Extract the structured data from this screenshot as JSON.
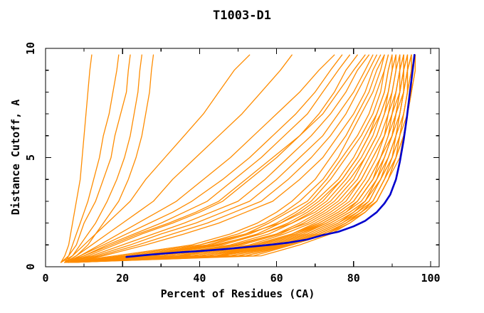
{
  "page": {
    "background": "#ffffff"
  },
  "chart_data": {
    "type": "line",
    "title": "T1003-D1",
    "xlabel": "Percent of Residues (CA)",
    "ylabel": "Distance Cutoff, A",
    "xlim": [
      0,
      100
    ],
    "ylim": [
      0,
      10
    ],
    "x_major_ticks": [
      0,
      20,
      40,
      60,
      80,
      100
    ],
    "x_minor_ticks": [
      10,
      30,
      50,
      70,
      90
    ],
    "y_major_ticks": [
      0,
      5,
      10
    ],
    "y_minor_ticks": [
      1,
      2,
      3,
      4,
      6,
      7,
      8,
      9
    ],
    "grid": false,
    "legend": "none",
    "colors": {
      "model_line": "#ff8c00",
      "highlight_line": "#0000cd",
      "frame": "#000000",
      "text": "#000000",
      "background": "#ffffff"
    },
    "y_grid": [
      0.2,
      0.5,
      1,
      1.5,
      2,
      2.5,
      3,
      4,
      5,
      6,
      7,
      8,
      9,
      9.7
    ],
    "models": [
      [
        4,
        5,
        6,
        6.5,
        7,
        7.5,
        8,
        9,
        9.5,
        10,
        10.5,
        11,
        11.5,
        12
      ],
      [
        4,
        6,
        7,
        8,
        9,
        10,
        11,
        12.5,
        14,
        15,
        16.5,
        17.5,
        18.5,
        19
      ],
      [
        5,
        6,
        8,
        9,
        10,
        11.5,
        13,
        15,
        17,
        18,
        19.5,
        21,
        21.5,
        22
      ],
      [
        4,
        7,
        9,
        11,
        13,
        14.5,
        16,
        18.5,
        20.5,
        22,
        23,
        24,
        24.5,
        25
      ],
      [
        5,
        8,
        11,
        13,
        15,
        17,
        19,
        21.5,
        23.5,
        25,
        26,
        27,
        27.5,
        28
      ],
      [
        5,
        7,
        10,
        13,
        16,
        19,
        22,
        26,
        31,
        36,
        41,
        45,
        49,
        53
      ],
      [
        5,
        8,
        12,
        16,
        20,
        24,
        28,
        33,
        39,
        45,
        51,
        56,
        61,
        64
      ],
      [
        6,
        9,
        14,
        19,
        24,
        29,
        34,
        41,
        48,
        54,
        60,
        66,
        71,
        75
      ],
      [
        5,
        9,
        15,
        21,
        27,
        33,
        38,
        46,
        53,
        59,
        65,
        70,
        74,
        77
      ],
      [
        6,
        10,
        16,
        23,
        30,
        36,
        42,
        49,
        56,
        62,
        68,
        72,
        76,
        79
      ],
      [
        6,
        11,
        18,
        25,
        33,
        40,
        46,
        53,
        60,
        66,
        71,
        75,
        78,
        81
      ],
      [
        5,
        10,
        17,
        24,
        32,
        39,
        45,
        52,
        59,
        66,
        72,
        76,
        80,
        83
      ],
      [
        6,
        12,
        20,
        28,
        36,
        43,
        50,
        57,
        63,
        69,
        74,
        78,
        81,
        84
      ],
      [
        6,
        13,
        22,
        30,
        39,
        46,
        53,
        60,
        66,
        72,
        76,
        80,
        83,
        85
      ],
      [
        7,
        14,
        24,
        33,
        42,
        49,
        56,
        63,
        69,
        74,
        78,
        81,
        84,
        86
      ],
      [
        7,
        15,
        26,
        36,
        45,
        52,
        59,
        66,
        72,
        76,
        80,
        83,
        85,
        87
      ],
      [
        5,
        18,
        38,
        48,
        55,
        60,
        64,
        70,
        74,
        78,
        81,
        84,
        86,
        88
      ],
      [
        6,
        20,
        40,
        50,
        57,
        62,
        66,
        72,
        76,
        79,
        82,
        85,
        87,
        88
      ],
      [
        5,
        22,
        42,
        52,
        58,
        63,
        68,
        73,
        77,
        81,
        84,
        86,
        88,
        89
      ],
      [
        7,
        24,
        43,
        53,
        60,
        65,
        69,
        74,
        78,
        82,
        85,
        87,
        88,
        89
      ],
      [
        6,
        26,
        45,
        55,
        61,
        66,
        70,
        76,
        80,
        83,
        86,
        88,
        89,
        90
      ],
      [
        5,
        28,
        46,
        56,
        63,
        68,
        72,
        77,
        81,
        84,
        86,
        88,
        89,
        90
      ],
      [
        7,
        30,
        48,
        58,
        64,
        69,
        73,
        78,
        82,
        85,
        87,
        89,
        90,
        91
      ],
      [
        6,
        32,
        50,
        60,
        66,
        71,
        75,
        80,
        83,
        86,
        88,
        89,
        90,
        91
      ],
      [
        5,
        34,
        51,
        61,
        67,
        72,
        76,
        81,
        84,
        87,
        89,
        90,
        91,
        92
      ],
      [
        7,
        36,
        53,
        62,
        69,
        74,
        78,
        82,
        85,
        88,
        89,
        91,
        92,
        92
      ],
      [
        6,
        38,
        54,
        64,
        70,
        75,
        79,
        83,
        86,
        88,
        90,
        91,
        92,
        93
      ],
      [
        5,
        40,
        56,
        65,
        71,
        76,
        80,
        84,
        87,
        89,
        90,
        92,
        92,
        93
      ],
      [
        7,
        42,
        57,
        66,
        72,
        77,
        81,
        85,
        88,
        90,
        91,
        92,
        93,
        93
      ],
      [
        6,
        44,
        58,
        67,
        73,
        78,
        82,
        86,
        88,
        90,
        92,
        93,
        93,
        94
      ],
      [
        5,
        46,
        60,
        69,
        75,
        80,
        83,
        87,
        89,
        91,
        92,
        93,
        94,
        94
      ],
      [
        7,
        48,
        61,
        70,
        76,
        81,
        84,
        87,
        90,
        91,
        93,
        94,
        94,
        95
      ],
      [
        6,
        50,
        62,
        71,
        77,
        81,
        85,
        88,
        90,
        92,
        93,
        94,
        95,
        95
      ],
      [
        5,
        52,
        63,
        72,
        78,
        82,
        85,
        88,
        91,
        92,
        93,
        94,
        95,
        95
      ],
      [
        7,
        54,
        64,
        73,
        78,
        83,
        86,
        89,
        91,
        93,
        94,
        95,
        95,
        96
      ],
      [
        6,
        56,
        66,
        74,
        79,
        83,
        86,
        89,
        91,
        93,
        94,
        95,
        96,
        96
      ],
      [
        5,
        45,
        59,
        68,
        74,
        79,
        83,
        86,
        89,
        91,
        92,
        93,
        94,
        95
      ],
      [
        6,
        40,
        57,
        66,
        73,
        78,
        81,
        85,
        88,
        90,
        91,
        93,
        93,
        94
      ],
      [
        7,
        35,
        54,
        64,
        71,
        76,
        80,
        84,
        87,
        89,
        91,
        92,
        93,
        93
      ],
      [
        5,
        30,
        49,
        60,
        68,
        73,
        77,
        82,
        85,
        88,
        90,
        91,
        92,
        92
      ],
      [
        6,
        25,
        44,
        56,
        64,
        70,
        74,
        79,
        83,
        86,
        88,
        90,
        91,
        91
      ],
      [
        7,
        20,
        40,
        52,
        61,
        67,
        71,
        77,
        81,
        84,
        87,
        89,
        90,
        90
      ],
      [
        5,
        38,
        55,
        65,
        72,
        77,
        81,
        85,
        87,
        90,
        91,
        92,
        93,
        94
      ],
      [
        6,
        42,
        59,
        68,
        74,
        79,
        83,
        86,
        89,
        91,
        92,
        93,
        94,
        95
      ],
      [
        7,
        46,
        61,
        70,
        76,
        80,
        84,
        87,
        90,
        92,
        93,
        94,
        94,
        95
      ],
      [
        5,
        50,
        63,
        72,
        78,
        82,
        86,
        89,
        91,
        93,
        94,
        95,
        95,
        96
      ],
      [
        6,
        52,
        64,
        73,
        79,
        83,
        86,
        89,
        92,
        93,
        94,
        95,
        96,
        96
      ],
      [
        7,
        48,
        62,
        71,
        77,
        82,
        85,
        88,
        91,
        92,
        94,
        95,
        95,
        96
      ]
    ],
    "highlight_model": {
      "points": [
        [
          21,
          0.45
        ],
        [
          27,
          0.55
        ],
        [
          34,
          0.65
        ],
        [
          40,
          0.72
        ],
        [
          46,
          0.8
        ],
        [
          51,
          0.88
        ],
        [
          58,
          1.0
        ],
        [
          63,
          1.1
        ],
        [
          68,
          1.25
        ],
        [
          72,
          1.45
        ],
        [
          76,
          1.6
        ],
        [
          80,
          1.85
        ],
        [
          83,
          2.1
        ],
        [
          86,
          2.5
        ],
        [
          88,
          2.9
        ],
        [
          89.5,
          3.3
        ],
        [
          91,
          4.0
        ],
        [
          92,
          4.8
        ],
        [
          93,
          5.8
        ],
        [
          93.8,
          6.8
        ],
        [
          94.5,
          7.8
        ],
        [
          95.2,
          8.8
        ],
        [
          95.8,
          9.7
        ]
      ]
    }
  }
}
